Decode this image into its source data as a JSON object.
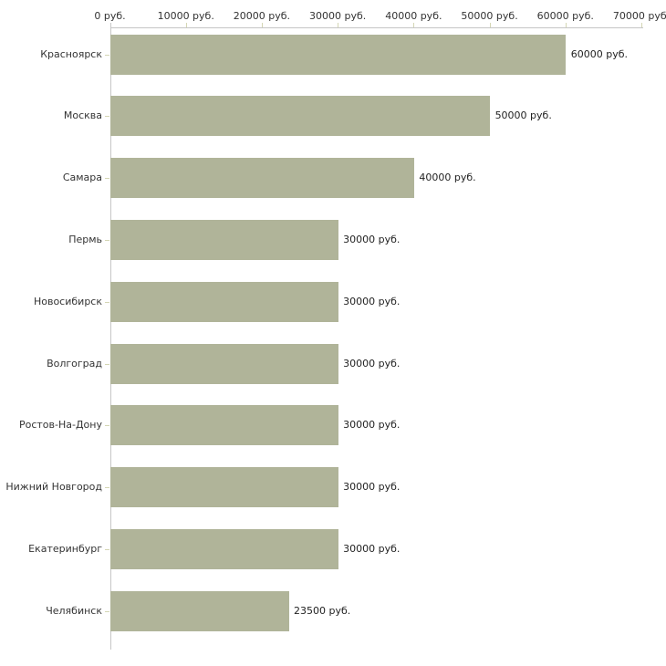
{
  "chart_data": {
    "type": "bar",
    "orientation": "horizontal",
    "title": "",
    "xlabel": "",
    "ylabel": "",
    "categories": [
      "Красноярск",
      "Москва",
      "Самара",
      "Пермь",
      "Новосибирск",
      "Волгоград",
      "Ростов-На-Дону",
      "Нижний Новгород",
      "Екатеринбург",
      "Челябинск"
    ],
    "values": [
      60000,
      50000,
      40000,
      30000,
      30000,
      30000,
      30000,
      30000,
      30000,
      23500
    ],
    "value_labels": [
      "60000 руб.",
      "50000 руб.",
      "40000 руб.",
      "30000 руб.",
      "30000 руб.",
      "30000 руб.",
      "30000 руб.",
      "30000 руб.",
      "30000 руб.",
      "23500 руб."
    ],
    "x_ticks": [
      0,
      10000,
      20000,
      30000,
      40000,
      50000,
      60000,
      70000
    ],
    "x_tick_labels": [
      "0 руб.",
      "10000 руб.",
      "20000 руб.",
      "30000 руб.",
      "40000 руб.",
      "50000 руб.",
      "60000 руб.",
      "70000 руб."
    ],
    "xlim": [
      0,
      70000
    ],
    "axis_position": "top",
    "grid": false,
    "legend": null,
    "colors": {
      "bar": "#b0b499",
      "axis_line": "#c6c6c6",
      "tick_mark": "#d4d6b4",
      "text": "#333333"
    }
  }
}
